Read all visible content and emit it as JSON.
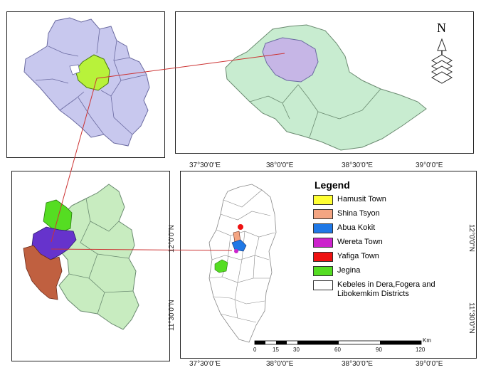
{
  "legend": {
    "title": "Legend",
    "items": [
      {
        "label": "Hamusit Town",
        "color": "#ffff33"
      },
      {
        "label": "Shina Tsyon",
        "color": "#f4a582"
      },
      {
        "label": "Abua Kokit",
        "color": "#1f78e6"
      },
      {
        "label": "Wereta Town",
        "color": "#cc22cc"
      },
      {
        "label": "Yafiga Town",
        "color": "#ee1111"
      },
      {
        "label": "Jegina",
        "color": "#55dd22"
      },
      {
        "label": "Kebeles in Dera,Fogera and Libokemkim Districts",
        "color": "#ffffff"
      }
    ]
  },
  "grid": {
    "top_lon": [
      "37°30'0\"E",
      "38°0'0\"E",
      "38°30'0\"E",
      "39°0'0\"E"
    ],
    "bottom_lon": [
      "37°30'0\"E",
      "38°0'0\"E",
      "38°30'0\"E",
      "39°0'0\"E"
    ],
    "left_lat": [
      "12°0'0\"N",
      "11°30'0\"N"
    ],
    "right_lat": [
      "12°0'0\"N",
      "11°30'0\"N"
    ]
  },
  "scalebar": {
    "unit": "Km",
    "labels": [
      "0",
      "15",
      "30",
      "60",
      "90",
      "120"
    ]
  },
  "north_arrow": {
    "label": "N"
  },
  "colors": {
    "amhara_fill": "#c8c8ee",
    "study_zone_fill": "#b8f23a",
    "ethiopia_fill": "#c8ecd0",
    "amhara_in_ethiopia": "#c6b6e6",
    "district_fill": "#c8ecc0",
    "dera_brown": "#c06040",
    "purple_district": "#6633cc",
    "link_line": "#cc3333"
  }
}
